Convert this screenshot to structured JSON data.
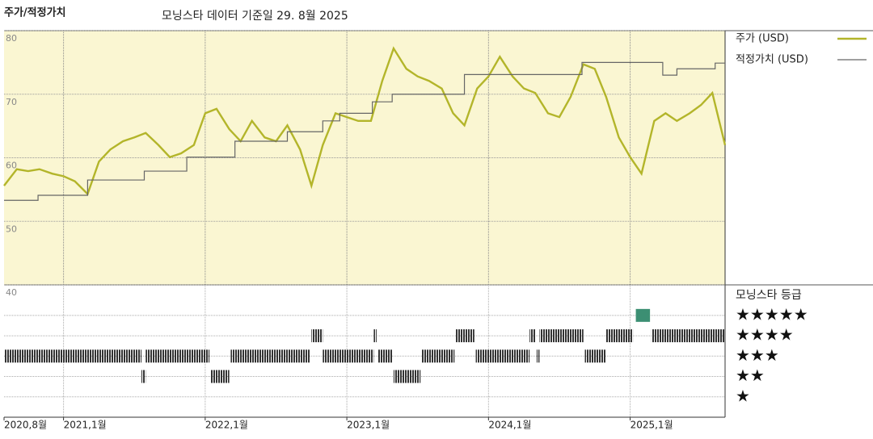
{
  "chart_data": [
    {
      "type": "line",
      "title": "주가/적정가치",
      "subtitle": "모닝스타 데이터 기준일 29. 8월 2025",
      "x": [
        2020.58,
        2020.67,
        2020.75,
        2020.83,
        2020.92,
        2021.0,
        2021.08,
        2021.17,
        2021.25,
        2021.33,
        2021.42,
        2021.5,
        2021.58,
        2021.67,
        2021.75,
        2021.83,
        2021.92,
        2022.0,
        2022.08,
        2022.17,
        2022.25,
        2022.33,
        2022.42,
        2022.5,
        2022.58,
        2022.67,
        2022.75,
        2022.83,
        2022.92,
        2023.0,
        2023.08,
        2023.17,
        2023.25,
        2023.33,
        2023.42,
        2023.5,
        2023.58,
        2023.67,
        2023.75,
        2023.83,
        2023.92,
        2024.0,
        2024.08,
        2024.17,
        2024.25,
        2024.33,
        2024.42,
        2024.5,
        2024.58,
        2024.67,
        2024.75,
        2024.83,
        2024.92,
        2025.0,
        2025.08,
        2025.17,
        2025.25,
        2025.33,
        2025.42,
        2025.5,
        2025.58,
        2025.67
      ],
      "series": [
        {
          "name": "주가 (USD)",
          "color": "#b3b52a",
          "values": [
            55.6,
            58.2,
            57.9,
            58.2,
            57.5,
            57.1,
            56.3,
            54.3,
            59.4,
            61.3,
            62.6,
            63.2,
            63.9,
            62.0,
            60.1,
            60.7,
            62.0,
            67.0,
            67.7,
            64.5,
            62.6,
            65.8,
            63.2,
            62.6,
            65.1,
            61.3,
            55.6,
            62.0,
            67.0,
            66.4,
            65.8,
            65.8,
            72.1,
            77.2,
            74.0,
            72.8,
            72.1,
            70.9,
            67.0,
            65.1,
            70.9,
            72.8,
            75.9,
            72.8,
            70.9,
            70.2,
            67.0,
            66.4,
            69.6,
            74.7,
            74.0,
            69.6,
            63.2,
            60.1,
            57.5,
            65.8,
            67.0,
            65.8,
            67.0,
            68.3,
            70.2,
            62.0
          ]
        },
        {
          "name": "적정가치 (USD)",
          "color": "#666666",
          "step": true,
          "x": [
            2020.58,
            2020.82,
            2021.17,
            2021.57,
            2021.87,
            2022.21,
            2022.58,
            2022.83,
            2022.95,
            2023.18,
            2023.32,
            2023.83,
            2024.66,
            2025.23,
            2025.33,
            2025.6,
            2025.67
          ],
          "values": [
            53.3,
            54.1,
            56.5,
            57.9,
            60.1,
            62.6,
            64.1,
            65.8,
            67.0,
            68.8,
            70.0,
            73.1,
            75.0,
            73.0,
            74.0,
            74.9,
            74.9
          ]
        }
      ],
      "xlim": [
        2020.58,
        2025.67
      ],
      "xticks": [
        {
          "value": 2020.58,
          "label": "2020,8월"
        },
        {
          "value": 2021.0,
          "label": "2021,1월"
        },
        {
          "value": 2022.0,
          "label": "2022,1월"
        },
        {
          "value": 2023.0,
          "label": "2023,1월"
        },
        {
          "value": 2024.0,
          "label": "2024,1월"
        },
        {
          "value": 2025.0,
          "label": "2025,1월"
        }
      ],
      "ylim": [
        40,
        80
      ],
      "yticks": [
        40,
        50,
        60,
        70,
        80
      ],
      "grid": true,
      "background": "#faf6d2"
    },
    {
      "type": "rating",
      "title": "모닝스타 등급",
      "ylim": [
        0,
        6.5
      ],
      "yticks": [
        {
          "value": 5,
          "label": "★★★★★"
        },
        {
          "value": 4,
          "label": "★★★★"
        },
        {
          "value": 3,
          "label": "★★★"
        },
        {
          "value": 2,
          "label": "★★"
        },
        {
          "value": 1,
          "label": "★"
        }
      ],
      "start": [
        2020.58,
        2021.55,
        2021.58,
        2022.04,
        2022.18,
        2022.75,
        2022.83,
        2023.19,
        2023.22,
        2023.33,
        2023.53,
        2023.77,
        2023.91,
        2024.29,
        2024.34,
        2024.36,
        2024.68,
        2024.83,
        2025.04,
        2025.15
      ],
      "end": [
        2021.55,
        2021.58,
        2022.03,
        2022.17,
        2022.74,
        2022.83,
        2023.19,
        2023.21,
        2023.32,
        2023.52,
        2023.76,
        2023.9,
        2024.29,
        2024.33,
        2024.36,
        2024.67,
        2024.83,
        2025.02,
        2025.14,
        2025.67
      ],
      "values": [
        3,
        2,
        3,
        2,
        3,
        4,
        3,
        4,
        3,
        2,
        3,
        4,
        3,
        4,
        3,
        4,
        3,
        4,
        5,
        4
      ],
      "color": "#333333",
      "top_color": "#3c8f73"
    }
  ]
}
